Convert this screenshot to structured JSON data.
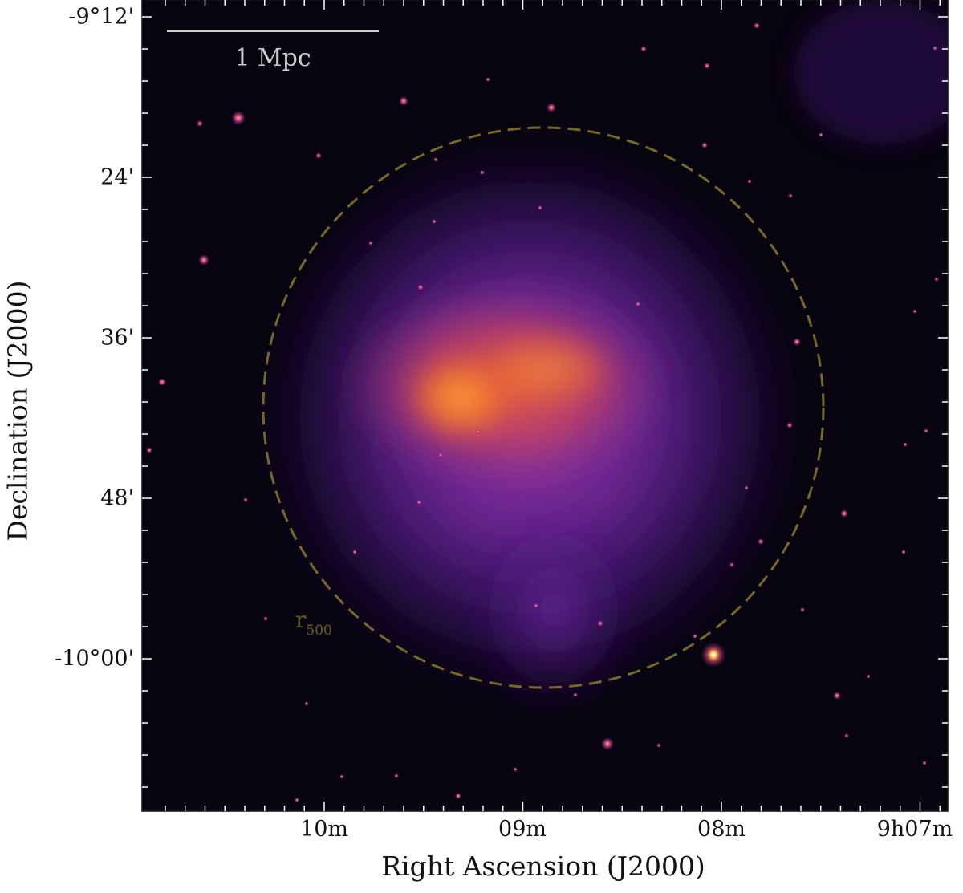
{
  "figure": {
    "xlabel": "Right Ascension (J2000)",
    "ylabel": "Declination (J2000)",
    "x_tick_labels": [
      "10m",
      "09m",
      "08m",
      "9h07m"
    ],
    "y_tick_labels": [
      "-9°12'",
      "24'",
      "36'",
      "48'",
      "-10°00'"
    ],
    "scale_bar_label": "1 Mpc",
    "circle_label_main": "r",
    "circle_label_sub": "500",
    "colors": {
      "background": "#08040f",
      "cluster_core": "#f2762c",
      "halo": "#6b24a0",
      "circle": "#8a7a2e",
      "scale_bar": "#cfcfcf"
    }
  }
}
